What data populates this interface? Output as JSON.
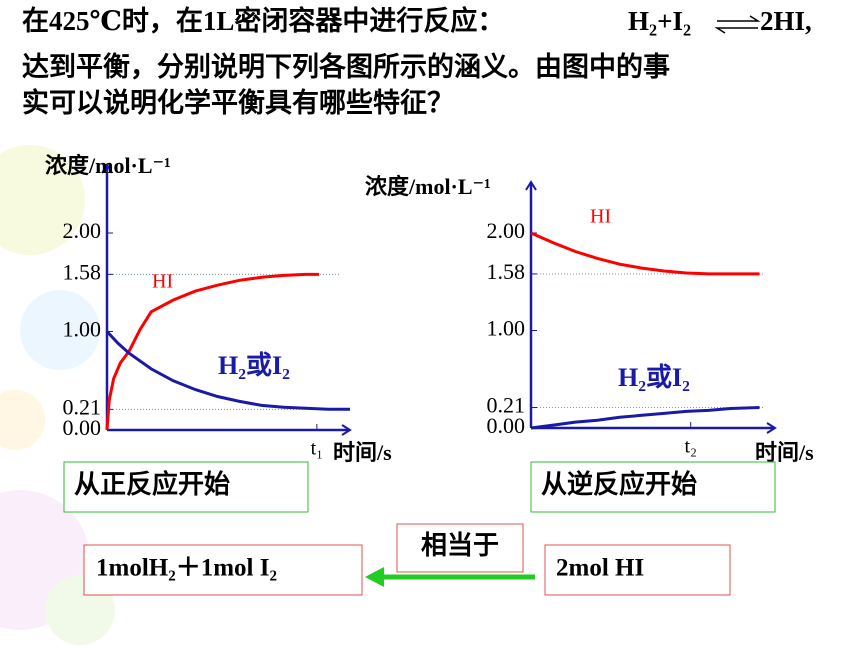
{
  "question_lines": [
    "在425℃时，在1L密闭容器中进行反应：",
    "达到平衡，分别说明下列各图所示的涵义。由图中的事",
    "实可以说明化学平衡具有哪些特征？"
  ],
  "equation": {
    "left": "H₂+I₂",
    "right": "2HI,"
  },
  "chart_data": [
    {
      "type": "line",
      "y_label": "浓度/mol·L⁻¹",
      "x_label": "时间/s",
      "xlim": [
        0,
        11
      ],
      "xticks": [
        {
          "value": 9.5,
          "label": "t₁"
        }
      ],
      "ylim": [
        0,
        2
      ],
      "yticks": [
        {
          "value": 0,
          "label": "0.00"
        },
        {
          "value": 0.21,
          "label": "0.21"
        },
        {
          "value": 1,
          "label": "1.00"
        },
        {
          "value": 1.58,
          "label": "1.58"
        },
        {
          "value": 2,
          "label": "2.00"
        }
      ],
      "series": [
        {
          "name": "HI",
          "color": "#ff0000",
          "x": [
            0,
            0.1,
            0.3,
            0.6,
            1,
            1.5,
            2,
            3,
            4,
            5,
            6,
            7,
            8,
            9,
            9.6
          ],
          "values": [
            0,
            0.3,
            0.52,
            0.68,
            0.8,
            1.02,
            1.2,
            1.32,
            1.41,
            1.47,
            1.52,
            1.55,
            1.57,
            1.58,
            1.58
          ]
        },
        {
          "name": "H₂或I₂",
          "color": "#1a1aa8",
          "x": [
            0,
            0.5,
            1,
            2,
            3,
            4,
            5,
            6,
            7,
            8,
            9,
            10,
            11
          ],
          "values": [
            1,
            0.88,
            0.78,
            0.62,
            0.5,
            0.41,
            0.34,
            0.29,
            0.25,
            0.23,
            0.22,
            0.21,
            0.21
          ]
        }
      ],
      "caption": "从正反应开始"
    },
    {
      "type": "line",
      "y_label": "浓度/mol·L⁻¹",
      "x_label": "时间/s",
      "xlim": [
        0,
        11
      ],
      "xticks": [
        {
          "value": 7.2,
          "label": "t₂"
        }
      ],
      "ylim": [
        0,
        2
      ],
      "yticks": [
        {
          "value": 0,
          "label": "0.00"
        },
        {
          "value": 0.21,
          "label": "0.21"
        },
        {
          "value": 1,
          "label": "1.00"
        },
        {
          "value": 1.58,
          "label": "1.58"
        },
        {
          "value": 2,
          "label": "2.00"
        }
      ],
      "series": [
        {
          "name": "HI",
          "color": "#ff0000",
          "x": [
            0,
            1,
            2,
            3,
            4,
            5,
            6,
            7,
            8,
            9,
            10.3
          ],
          "values": [
            2,
            1.9,
            1.81,
            1.74,
            1.68,
            1.64,
            1.61,
            1.59,
            1.58,
            1.58,
            1.58
          ]
        },
        {
          "name": "H₂或I₂",
          "color": "#1a1aa8",
          "x": [
            0,
            1,
            2,
            3,
            4,
            5,
            6,
            7,
            8,
            9,
            10.3
          ],
          "values": [
            0,
            0.03,
            0.06,
            0.08,
            0.11,
            0.13,
            0.15,
            0.17,
            0.18,
            0.2,
            0.21
          ]
        }
      ],
      "caption": "从逆反应开始"
    }
  ],
  "equivalent": {
    "label": "相当于",
    "left": "1molH₂＋1mol  I₂",
    "right": "2mol  HI"
  }
}
